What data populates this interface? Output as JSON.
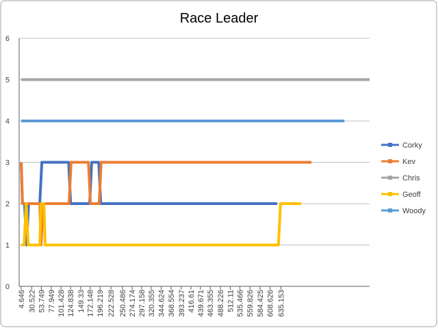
{
  "chart_data": {
    "type": "line",
    "title": "Race Leader",
    "xlim": [
      0,
      850
    ],
    "xticks": [
      4.646,
      30.522,
      53.749,
      77.949,
      101.428,
      124.838,
      149.33,
      172.148,
      196.219,
      222.528,
      250.486,
      274.174,
      297.158,
      320.355,
      344.624,
      368.554,
      393.237,
      416.61,
      439.671,
      463.355,
      488.226,
      512.11,
      535.466,
      559.826,
      584.425,
      608.626,
      635.153
    ],
    "ylim": [
      0,
      6
    ],
    "yticks": [
      0,
      1,
      2,
      3,
      4,
      5,
      6
    ],
    "grid": true,
    "series": [
      {
        "name": "Corky",
        "color": "#4472c4",
        "x": [
          5,
          8,
          13,
          18,
          23,
          50,
          55,
          120,
          125,
          171,
          176,
          193,
          198,
          626
        ],
        "values": [
          3,
          2,
          2,
          1,
          2,
          2,
          3,
          3,
          2,
          2,
          3,
          3,
          2,
          2
        ]
      },
      {
        "name": "Kev",
        "color": "#ed7d31",
        "x": [
          5,
          8,
          50,
          53,
          58,
          121,
          126,
          168,
          173,
          194,
          199,
          709
        ],
        "values": [
          3,
          2,
          2,
          1,
          2,
          2,
          3,
          3,
          2,
          2,
          3,
          3
        ]
      },
      {
        "name": "Chris",
        "color": "#a5a5a5",
        "x": [
          5,
          850
        ],
        "values": [
          5,
          5
        ]
      },
      {
        "name": "Geoff",
        "color": "#ffc000",
        "x": [
          5,
          12,
          17,
          22,
          50,
          53,
          60,
          63,
          629,
          634,
          684
        ],
        "values": [
          1,
          1,
          2,
          1,
          1,
          2,
          2,
          1,
          1,
          2,
          2
        ]
      },
      {
        "name": "Woody",
        "color": "#5b9bd5",
        "x": [
          5,
          789
        ],
        "values": [
          4,
          4
        ]
      }
    ]
  }
}
